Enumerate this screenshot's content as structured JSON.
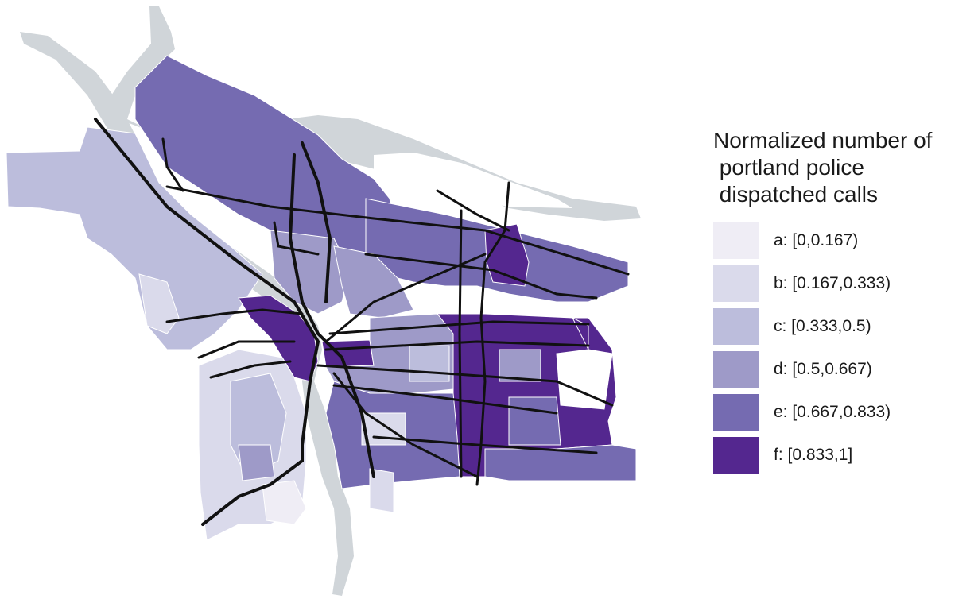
{
  "legend": {
    "title": "Normalized number of\n portland police\n dispatched calls",
    "items": [
      {
        "label": "a: [0,0.167)",
        "color": "#efedf5"
      },
      {
        "label": "b: [0.167,0.333)",
        "color": "#dadaeb"
      },
      {
        "label": "c: [0.333,0.5)",
        "color": "#bcbddc"
      },
      {
        "label": "d: [0.5,0.667)",
        "color": "#9e9ac8"
      },
      {
        "label": "e: [0.667,0.833)",
        "color": "#756bb1"
      },
      {
        "label": "f: [0.833,1]",
        "color": "#54278f"
      }
    ]
  },
  "map": {
    "water_color": "#d0d5d9",
    "road_color": "#111111",
    "district_border_color": "#ffffff"
  }
}
